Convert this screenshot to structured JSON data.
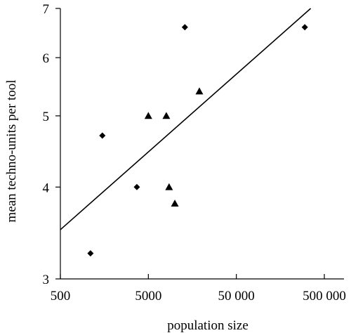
{
  "chart_data": {
    "type": "scatter",
    "xlabel": "population size",
    "ylabel": "mean techno-units per tool",
    "xscale": "log",
    "yscale": "log",
    "xlim": [
      500,
      500000
    ],
    "ylim": [
      3,
      7
    ],
    "x_ticks": [
      500,
      5000,
      50000,
      500000
    ],
    "x_tick_labels": [
      "500",
      "5000",
      "50 000",
      "500 000"
    ],
    "y_ticks": [
      3,
      4,
      5,
      6,
      7
    ],
    "y_tick_labels": [
      "3",
      "4",
      "5",
      "6",
      "7"
    ],
    "grid": false,
    "series": [
      {
        "marker": "diamond",
        "points": [
          {
            "x": 1100,
            "y": 3.25
          },
          {
            "x": 1500,
            "y": 4.7
          },
          {
            "x": 3700,
            "y": 4.0
          },
          {
            "x": 13000,
            "y": 6.6
          },
          {
            "x": 300000,
            "y": 6.6
          }
        ]
      },
      {
        "marker": "triangle",
        "points": [
          {
            "x": 5000,
            "y": 5.0
          },
          {
            "x": 8000,
            "y": 5.0
          },
          {
            "x": 8600,
            "y": 4.0
          },
          {
            "x": 10000,
            "y": 3.8
          },
          {
            "x": 19000,
            "y": 5.4
          }
        ]
      }
    ],
    "fit_line": {
      "x": [
        500,
        350000
      ],
      "y": [
        3.5,
        7.0
      ]
    }
  }
}
